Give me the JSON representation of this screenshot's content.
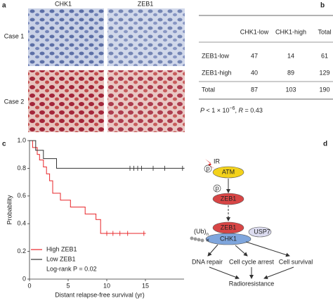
{
  "panel_a": {
    "label": "a",
    "columns": [
      "CHK1",
      "ZEB1"
    ],
    "rows": [
      "Case 1",
      "Case 2"
    ]
  },
  "table": {
    "label": "b",
    "header": [
      "CHK1-low",
      "CHK1-high",
      "Total"
    ],
    "rows": [
      [
        "ZEB1-low",
        47,
        14,
        61
      ],
      [
        "ZEB1-high",
        40,
        89,
        129
      ],
      [
        "Total",
        87,
        103,
        190
      ]
    ],
    "footnote": [
      "P",
      " < 1 × 10",
      "−6",
      ", ",
      "R",
      " = 0.43"
    ]
  },
  "chart_data": {
    "type": "step",
    "label": "c",
    "xlabel": "Distant relapse-free survival (yr)",
    "ylabel": "Probability",
    "xlim": [
      0,
      20
    ],
    "ylim": [
      0,
      1
    ],
    "xticks": [
      0,
      5,
      10,
      15
    ],
    "yticks": [
      0,
      0.2,
      0.4,
      0.6,
      0.8,
      {
        "value": 1,
        "label": "1.0"
      }
    ],
    "legend": "bottom-left",
    "annotation": "Log-rank P = 0.02",
    "series": [
      {
        "name": "High ZEB1",
        "color": "#e8262a",
        "x": [
          0,
          0.4,
          1,
          1.3,
          1.8,
          2.2,
          2.6,
          3,
          4,
          5.3,
          7.2,
          8.6,
          9.2,
          15
        ],
        "values": [
          1,
          0.95,
          0.9,
          0.86,
          0.81,
          0.76,
          0.71,
          0.62,
          0.57,
          0.52,
          0.47,
          0.43,
          0.33,
          0.33
        ],
        "censored": [
          10,
          10.8,
          11.7,
          12.7,
          14.8
        ]
      },
      {
        "name": "Low ZEB1",
        "color": "#333333",
        "x": [
          0,
          0.8,
          1.8,
          3.5,
          20
        ],
        "values": [
          1,
          0.93,
          0.87,
          0.8,
          0.8
        ],
        "censored": [
          13,
          13.5,
          14,
          14.5,
          16,
          17.5,
          19.8
        ]
      }
    ]
  },
  "diagram": {
    "label": "d",
    "stimulus": "IR",
    "kinase": "ATM",
    "phospho": [
      "p",
      "p"
    ],
    "zeb1": [
      "ZEB1",
      "ZEB1"
    ],
    "chk1": "CHK1",
    "usp7": "USP7",
    "ubiquitin": [
      "(Ub)",
      "n"
    ],
    "outcomes": [
      "DNA repair",
      "Cell cycle arrest",
      "Cell survival"
    ],
    "result": "Radioresistance"
  }
}
